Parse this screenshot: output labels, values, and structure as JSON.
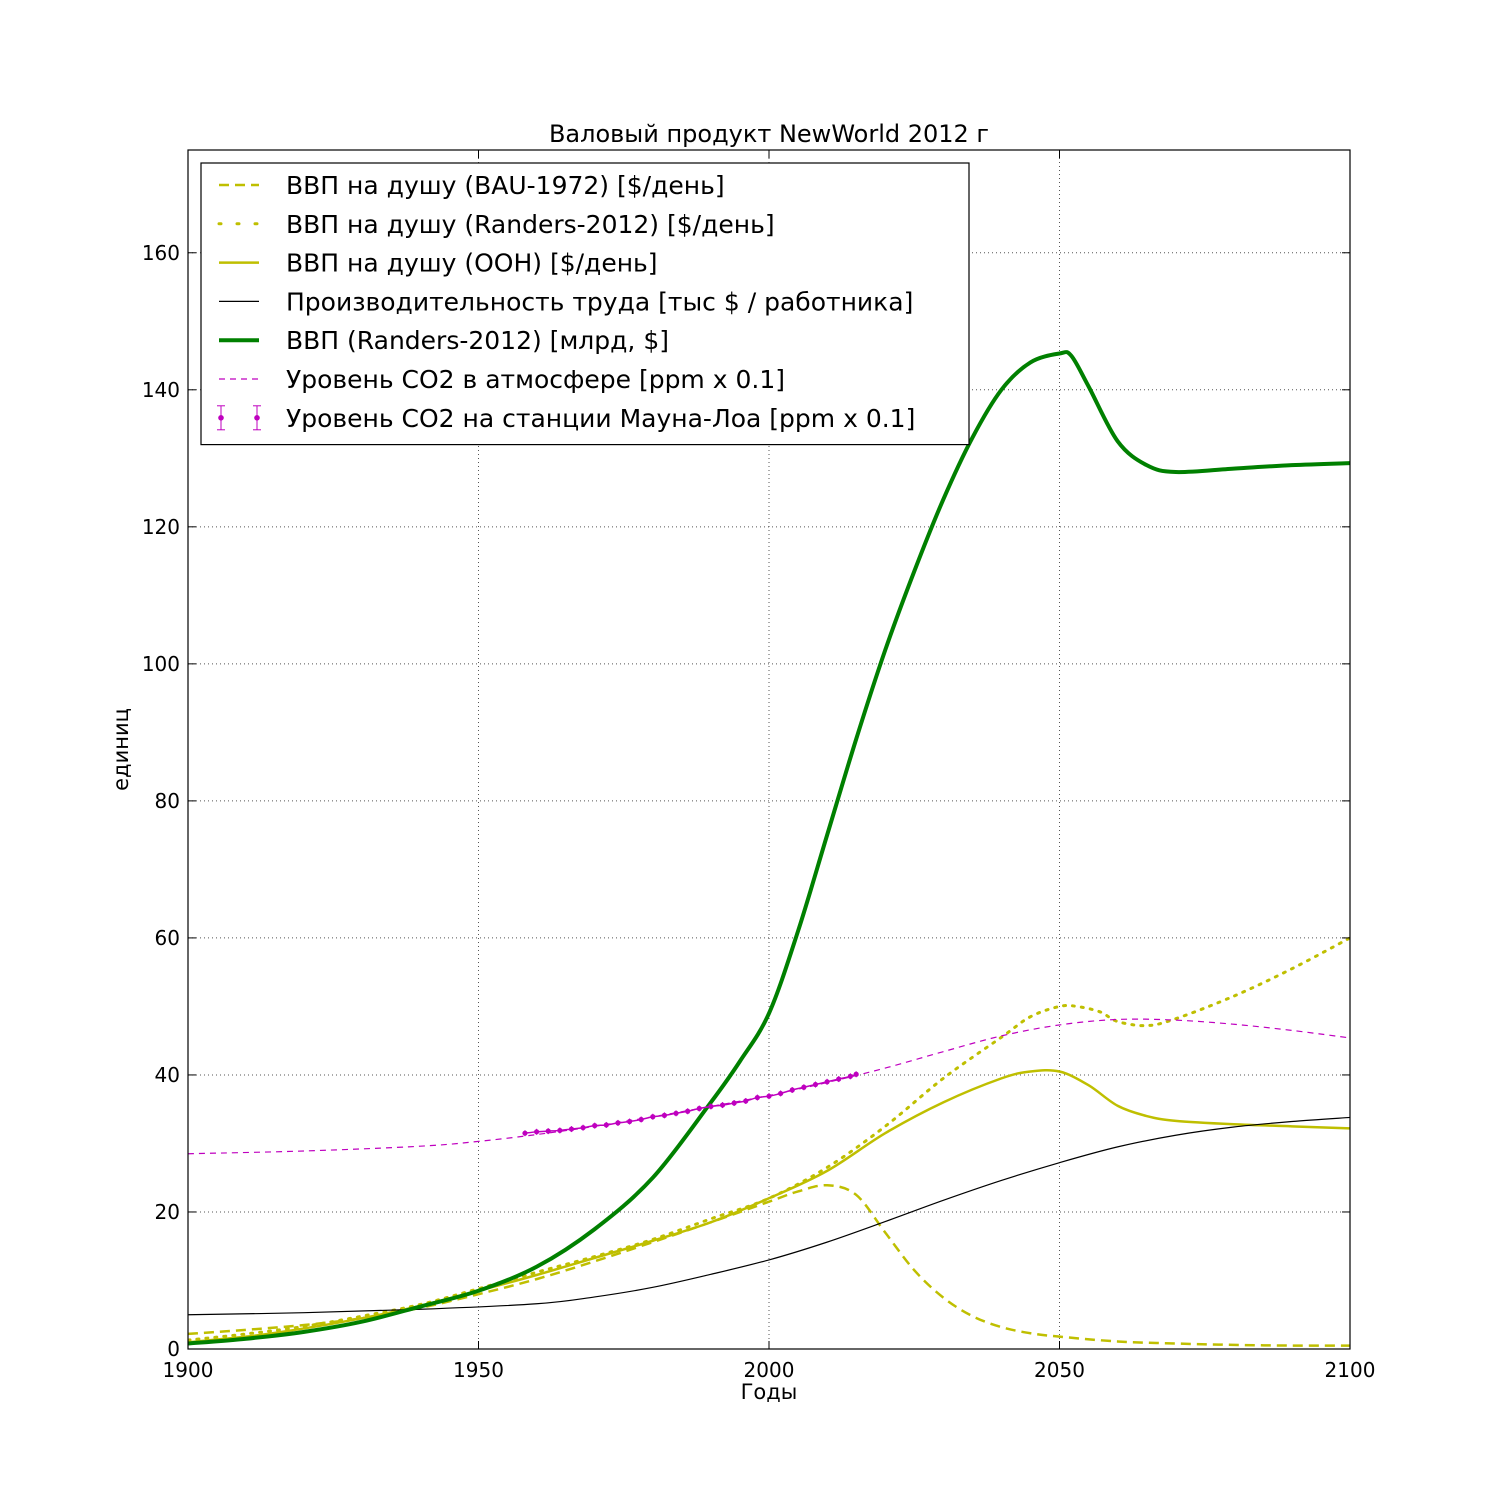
{
  "chart_data": {
    "type": "line",
    "title": "Валовый продукт NewWorld 2012 г",
    "xlabel": "Годы",
    "ylabel": "единиц",
    "xlim": [
      1900,
      2100
    ],
    "ylim": [
      0,
      175
    ],
    "xticks": [
      1900,
      1950,
      2000,
      2050,
      2100
    ],
    "yticks": [
      0,
      20,
      40,
      60,
      80,
      100,
      120,
      140,
      160
    ],
    "grid": true,
    "legend_position": "top-left",
    "series": [
      {
        "name": "ВВП на душу (BAU-1972) [$/день]",
        "color": "#bfbf00",
        "style": "dashed",
        "width": 2.5,
        "x": [
          1900,
          1910,
          1920,
          1930,
          1940,
          1950,
          1960,
          1970,
          1980,
          1990,
          2000,
          2005,
          2010,
          2015,
          2020,
          2025,
          2030,
          2035,
          2040,
          2045,
          2050,
          2060,
          2070,
          2080,
          2090,
          2100
        ],
        "y": [
          2.2,
          2.8,
          3.5,
          4.5,
          6.0,
          8.0,
          10.2,
          12.8,
          15.6,
          18.5,
          21.5,
          23.0,
          23.9,
          22.5,
          17.0,
          11.5,
          7.5,
          4.8,
          3.2,
          2.3,
          1.8,
          1.1,
          0.8,
          0.6,
          0.5,
          0.5
        ]
      },
      {
        "name": "ВВП на душу (Randers-2012) [$/день]",
        "color": "#bfbf00",
        "style": "dotted",
        "width": 3,
        "x": [
          1900,
          1910,
          1920,
          1930,
          1940,
          1950,
          1960,
          1970,
          1980,
          1990,
          2000,
          2010,
          2020,
          2030,
          2040,
          2045,
          2050,
          2053,
          2057,
          2060,
          2065,
          2070,
          2080,
          2090,
          2100
        ],
        "y": [
          1.3,
          2.2,
          3.3,
          4.8,
          6.5,
          8.8,
          11.2,
          13.5,
          16.0,
          19.0,
          22.0,
          26.5,
          32.5,
          39.5,
          45.5,
          48.5,
          50.0,
          50.0,
          49.2,
          47.8,
          47.2,
          48.2,
          51.5,
          55.5,
          60.0
        ]
      },
      {
        "name": "ВВП на душу (ООН) [$/день]",
        "color": "#bfbf00",
        "style": "solid",
        "width": 2.5,
        "x": [
          1900,
          1910,
          1920,
          1930,
          1940,
          1950,
          1960,
          1970,
          1980,
          1990,
          2000,
          2010,
          2020,
          2030,
          2040,
          2045,
          2050,
          2055,
          2060,
          2065,
          2070,
          2080,
          2090,
          2100
        ],
        "y": [
          1.0,
          1.8,
          3.0,
          4.5,
          6.3,
          8.5,
          10.8,
          13.3,
          15.8,
          18.5,
          22.0,
          26.0,
          31.5,
          36.0,
          39.5,
          40.5,
          40.5,
          38.5,
          35.5,
          34.0,
          33.3,
          32.8,
          32.5,
          32.2
        ]
      },
      {
        "name": "Производительность труда [тыс $ / работника]",
        "color": "#000000",
        "style": "solid",
        "width": 1.2,
        "x": [
          1900,
          1920,
          1940,
          1960,
          1970,
          1980,
          1990,
          2000,
          2010,
          2020,
          2030,
          2040,
          2050,
          2060,
          2070,
          2080,
          2090,
          2100
        ],
        "y": [
          5.0,
          5.3,
          5.8,
          6.6,
          7.6,
          9.0,
          10.9,
          13.0,
          15.6,
          18.6,
          21.7,
          24.6,
          27.2,
          29.5,
          31.2,
          32.4,
          33.2,
          33.8
        ]
      },
      {
        "name": "ВВП (Randers-2012) [млрд, $]",
        "color": "#008000",
        "style": "solid",
        "width": 4,
        "x": [
          1900,
          1910,
          1920,
          1930,
          1940,
          1950,
          1960,
          1970,
          1980,
          1990,
          1995,
          2000,
          2005,
          2010,
          2015,
          2020,
          2025,
          2030,
          2035,
          2040,
          2045,
          2050,
          2052,
          2055,
          2060,
          2065,
          2070,
          2080,
          2090,
          2100
        ],
        "y": [
          0.8,
          1.5,
          2.5,
          4.0,
          6.2,
          8.5,
          12.0,
          17.5,
          25.0,
          36.0,
          42.0,
          49.0,
          61.0,
          75.0,
          89.0,
          102.0,
          113.5,
          124.0,
          133.0,
          140.0,
          144.0,
          145.3,
          145.0,
          140.5,
          132.5,
          129.0,
          128.0,
          128.5,
          129.0,
          129.3
        ]
      },
      {
        "name": "Уровень CO2 в атмосфере [ppm x 0.1]",
        "color": "#bf00bf",
        "style": "dashed",
        "width": 1.2,
        "x": [
          1900,
          1920,
          1940,
          1950,
          1960,
          1970,
          1980,
          1990,
          2000,
          2010,
          2020,
          2030,
          2040,
          2050,
          2060,
          2070,
          2080,
          2090,
          2100
        ],
        "y": [
          28.5,
          28.9,
          29.6,
          30.3,
          31.3,
          32.5,
          33.9,
          35.4,
          37.0,
          38.9,
          41.0,
          43.4,
          45.7,
          47.3,
          48.1,
          48.0,
          47.4,
          46.5,
          45.4
        ]
      },
      {
        "name": "Уровень CO2 на станции Мауна-Лоа [ppm x 0.1]",
        "color": "#bf00bf",
        "style": "errorbar",
        "width": 1,
        "x": [
          1958,
          1960,
          1962,
          1964,
          1966,
          1968,
          1970,
          1972,
          1974,
          1976,
          1978,
          1980,
          1982,
          1984,
          1986,
          1988,
          1990,
          1992,
          1994,
          1996,
          1998,
          2000,
          2002,
          2004,
          2006,
          2008,
          2010,
          2012,
          2014,
          2015
        ],
        "y": [
          31.5,
          31.7,
          31.8,
          31.9,
          32.1,
          32.3,
          32.6,
          32.7,
          33.0,
          33.2,
          33.5,
          33.9,
          34.1,
          34.4,
          34.7,
          35.1,
          35.4,
          35.6,
          35.9,
          36.2,
          36.7,
          36.9,
          37.3,
          37.8,
          38.2,
          38.6,
          39.0,
          39.4,
          39.8,
          40.1
        ]
      }
    ]
  }
}
